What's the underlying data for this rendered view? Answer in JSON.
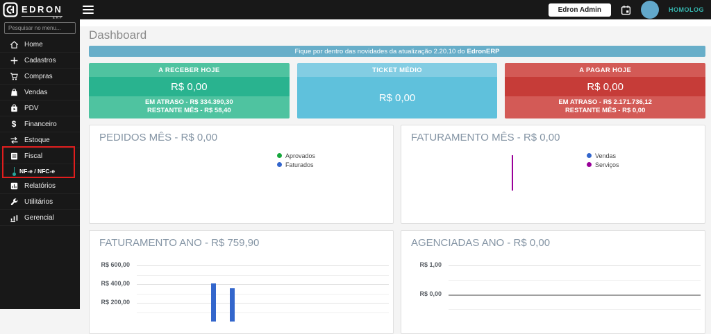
{
  "topbar": {
    "brand": "EDRON",
    "brand_sub": "ERP",
    "user_button": "Edron Admin",
    "env": "HOMOLOG"
  },
  "sidebar": {
    "search_placeholder": "Pesquisar no menu...",
    "items": [
      {
        "label": "Home"
      },
      {
        "label": "Cadastros"
      },
      {
        "label": "Compras"
      },
      {
        "label": "Vendas"
      },
      {
        "label": "PDV"
      },
      {
        "label": "Financeiro"
      },
      {
        "label": "Estoque"
      },
      {
        "label": "Fiscal"
      },
      {
        "label": "NF-e / NFC-e"
      },
      {
        "label": "Relatórios"
      },
      {
        "label": "Utilitários"
      },
      {
        "label": "Gerencial"
      }
    ]
  },
  "page": {
    "title": "Dashboard",
    "banner_text": "Fique por dentro das novidades da atualização 2.20.10 do",
    "banner_brand": "EdronERP"
  },
  "cards": {
    "receber": {
      "title": "A RECEBER HOJE",
      "value": "R$ 0,00",
      "line1": "EM ATRASO - R$ 334.390,30",
      "line2": "RESTANTE MÊS - R$ 58,40",
      "color_light": "#4fc3a0",
      "color_dark": "#29b38f"
    },
    "ticket": {
      "title": "TICKET MÉDIO",
      "value": "R$ 0,00",
      "color_light": "#83cde3",
      "color_dark": "#5fc1dc"
    },
    "pagar": {
      "title": "A PAGAR HOJE",
      "value": "R$ 0,00",
      "line1": "EM ATRASO - R$ 2.171.736,12",
      "line2": "RESTANTE MÊS - R$ 0,00",
      "color_light": "#d35a56",
      "color_dark": "#c63c38"
    }
  },
  "chart_data": [
    {
      "type": "line",
      "title": "PEDIDOS MÊS - R$ 0,00",
      "series": [
        {
          "name": "Aprovados",
          "color": "#16a73c",
          "values": []
        },
        {
          "name": "Faturados",
          "color": "#3366cc",
          "values": []
        }
      ],
      "legend_position": "center-right",
      "note_visible_data": "empty plot area"
    },
    {
      "type": "line",
      "title": "FATURAMENTO MÊS - R$ 0,00",
      "series": [
        {
          "name": "Vendas",
          "color": "#3366cc",
          "values": []
        },
        {
          "name": "Serviços",
          "color": "#990099",
          "values": []
        }
      ],
      "legend_position": "center-right",
      "spike": {
        "series": "Serviços",
        "color": "#990099",
        "x_fraction": 0.365
      }
    },
    {
      "type": "bar",
      "title": "FATURAMENTO ANO - R$ 759,90",
      "bar_color": "#3366cc",
      "y_ticks": [
        {
          "value": 600,
          "label": "R$ 600,00"
        },
        {
          "value": 500
        },
        {
          "value": 400,
          "label": "R$ 400,00"
        },
        {
          "value": 300
        },
        {
          "value": 200,
          "label": "R$ 200,00"
        },
        {
          "value": 100
        }
      ],
      "bars": [
        {
          "x_fraction": 0.294,
          "value": 405
        },
        {
          "x_fraction": 0.368,
          "value": 355
        }
      ],
      "ylim_visible": [
        100,
        620
      ],
      "grid": true
    },
    {
      "type": "bar",
      "title": "AGENCIADAS ANO - R$ 0,00",
      "y_ticks": [
        {
          "value": 1.0,
          "label": "R$ 1,00"
        },
        {
          "value": 0.5
        },
        {
          "value": 0.0,
          "label": "R$ 0,00",
          "baseline": true
        },
        {
          "value": -0.5
        }
      ],
      "bars": [],
      "ylim_visible": [
        -0.6,
        1.1
      ],
      "grid": true
    }
  ]
}
